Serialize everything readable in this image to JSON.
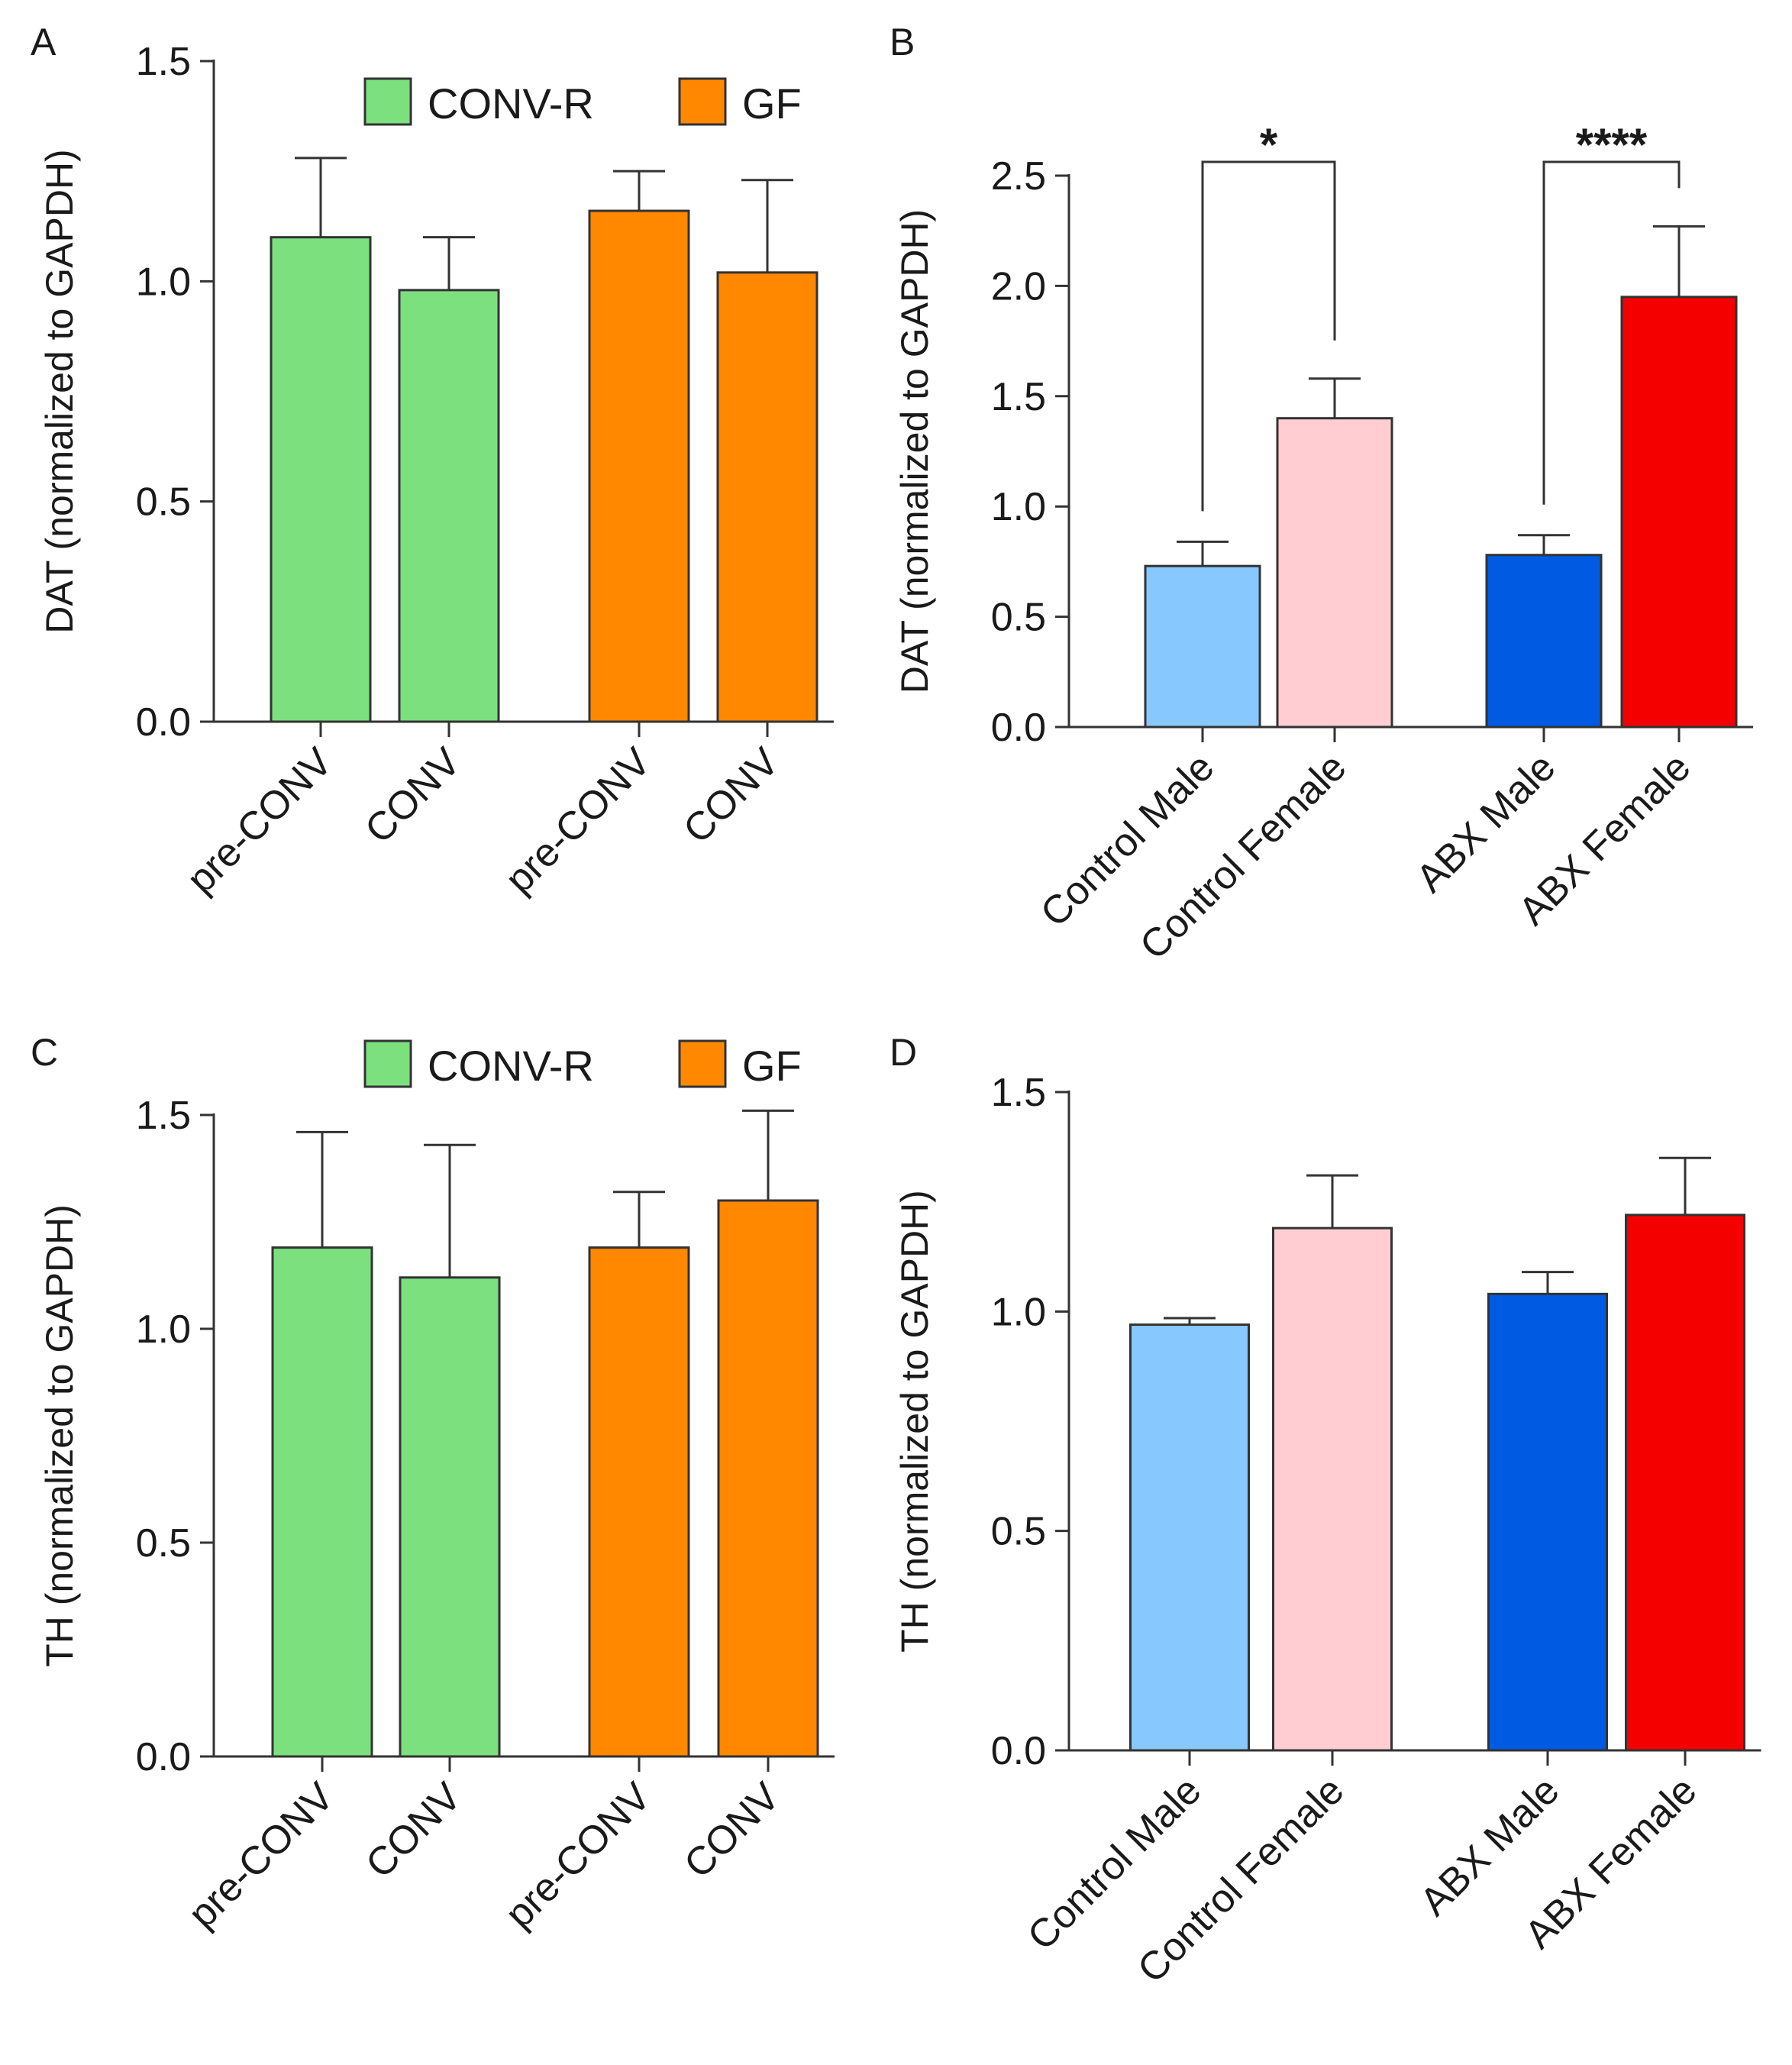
{
  "chart_data": [
    {
      "id": "A",
      "panel_label": "A",
      "type": "bar",
      "ylabel": "DAT (normalized to GAPDH)",
      "ylim": [
        0,
        1.5
      ],
      "yticks": [
        0.0,
        0.5,
        1.0,
        1.5
      ],
      "ytick_labels": [
        "0.0",
        "0.5",
        "1.0",
        "1.5"
      ],
      "categories": [
        "pre-CONV",
        "CONV",
        "pre-CONV",
        "CONV"
      ],
      "values": [
        1.1,
        0.98,
        1.16,
        1.02
      ],
      "errors": [
        0.18,
        0.12,
        0.09,
        0.21
      ],
      "bar_colors": [
        "#7ce07f",
        "#7ce07f",
        "#ff8800",
        "#ff8800"
      ],
      "legend": [
        {
          "label": "CONV-R",
          "color": "#7ce07f"
        },
        {
          "label": "GF",
          "color": "#ff8800"
        }
      ],
      "legend_position": "top-right",
      "significance": []
    },
    {
      "id": "B",
      "panel_label": "B",
      "type": "bar",
      "ylabel": "DAT (normalized to GAPDH)",
      "ylim": [
        0,
        2.5
      ],
      "yticks": [
        0.0,
        0.5,
        1.0,
        1.5,
        2.0,
        2.5
      ],
      "ytick_labels": [
        "0.0",
        "0.5",
        "1.0",
        "1.5",
        "2.0",
        "2.5"
      ],
      "categories": [
        "Control Male",
        "Control Female",
        "ABX Male",
        "ABX Female"
      ],
      "values": [
        0.73,
        1.4,
        0.78,
        1.95
      ],
      "errors": [
        0.11,
        0.18,
        0.09,
        0.32
      ],
      "bar_colors": [
        "#87c8ff",
        "#ffcdd2",
        "#005be3",
        "#f50000"
      ],
      "legend": [],
      "significance": [
        {
          "from": 0,
          "to": 1,
          "label": "*"
        },
        {
          "from": 2,
          "to": 3,
          "label": "****"
        }
      ]
    },
    {
      "id": "C",
      "panel_label": "C",
      "type": "bar",
      "ylabel": "TH (normalized to GAPDH)",
      "ylim": [
        0,
        1.5
      ],
      "yticks": [
        0.0,
        0.5,
        1.0,
        1.5
      ],
      "ytick_labels": [
        "0.0",
        "0.5",
        "1.0",
        "1.5"
      ],
      "categories": [
        "pre-CONV",
        "CONV",
        "pre-CONV",
        "CONV"
      ],
      "values": [
        1.19,
        1.12,
        1.19,
        1.3
      ],
      "errors": [
        0.27,
        0.31,
        0.13,
        0.21
      ],
      "bar_colors": [
        "#7ce07f",
        "#7ce07f",
        "#ff8800",
        "#ff8800"
      ],
      "legend": [
        {
          "label": "CONV-R",
          "color": "#7ce07f"
        },
        {
          "label": "GF",
          "color": "#ff8800"
        }
      ],
      "legend_position": "top-right",
      "significance": []
    },
    {
      "id": "D",
      "panel_label": "D",
      "type": "bar",
      "ylabel": "TH (normalized to GAPDH)",
      "ylim": [
        0,
        1.5
      ],
      "yticks": [
        0.0,
        0.5,
        1.0,
        1.5
      ],
      "ytick_labels": [
        "0.0",
        "0.5",
        "1.0",
        "1.5"
      ],
      "categories": [
        "Control Male",
        "Control Female",
        "ABX Male",
        "ABX Female"
      ],
      "values": [
        0.97,
        1.19,
        1.04,
        1.22
      ],
      "errors": [
        0.015,
        0.12,
        0.05,
        0.13
      ],
      "bar_colors": [
        "#87c8ff",
        "#ffcdd2",
        "#005be3",
        "#f50000"
      ],
      "legend": [],
      "significance": []
    }
  ]
}
